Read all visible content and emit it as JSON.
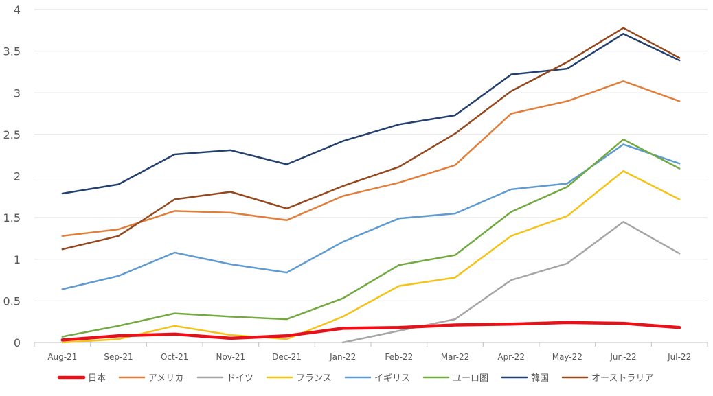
{
  "chart_data": {
    "type": "line",
    "title": "",
    "xlabel": "",
    "ylabel": "",
    "ylim": [
      0,
      4
    ],
    "yticks": [
      "0",
      "0.5",
      "1",
      "1.5",
      "2",
      "2.5",
      "3",
      "3.5",
      "4"
    ],
    "grid": "horizontal",
    "legend": "bottom",
    "categories": [
      "Aug-21",
      "Sep-21",
      "Oct-21",
      "Nov-21",
      "Dec-21",
      "Jan-22",
      "Feb-22",
      "Mar-22",
      "Apr-22",
      "May-22",
      "Jun-22",
      "Jul-22"
    ],
    "series": [
      {
        "name": "日本",
        "color": "#e8111a",
        "emphasis": true,
        "values": [
          0.03,
          0.08,
          0.1,
          0.05,
          0.08,
          0.17,
          0.18,
          0.21,
          0.22,
          0.24,
          0.23,
          0.18
        ]
      },
      {
        "name": "アメリカ",
        "color": "#e07f3c",
        "values": [
          1.28,
          1.36,
          1.58,
          1.56,
          1.47,
          1.76,
          1.92,
          2.13,
          2.75,
          2.9,
          3.14,
          2.9
        ]
      },
      {
        "name": "ドイツ",
        "color": "#a6a6a6",
        "values": [
          null,
          null,
          null,
          null,
          null,
          0.0,
          0.14,
          0.28,
          0.75,
          0.95,
          1.45,
          1.07
        ]
      },
      {
        "name": "フランス",
        "color": "#f5c218",
        "values": [
          0.0,
          0.04,
          0.2,
          0.09,
          0.04,
          0.31,
          0.68,
          0.78,
          1.28,
          1.52,
          2.06,
          1.72
        ]
      },
      {
        "name": "イギリス",
        "color": "#5f9bd0",
        "values": [
          0.64,
          0.8,
          1.08,
          0.94,
          0.84,
          1.21,
          1.49,
          1.55,
          1.84,
          1.91,
          2.38,
          2.15
        ]
      },
      {
        "name": "ユーロ圏",
        "color": "#72a941",
        "values": [
          0.07,
          0.2,
          0.35,
          0.31,
          0.28,
          0.53,
          0.93,
          1.05,
          1.57,
          1.87,
          2.44,
          2.09
        ]
      },
      {
        "name": "韓国",
        "color": "#24406e",
        "values": [
          1.79,
          1.9,
          2.26,
          2.31,
          2.14,
          2.42,
          2.62,
          2.73,
          3.22,
          3.29,
          3.71,
          3.39
        ]
      },
      {
        "name": "オーストラリア",
        "color": "#93481d",
        "values": [
          1.12,
          1.28,
          1.72,
          1.81,
          1.61,
          1.88,
          2.11,
          2.51,
          3.02,
          3.37,
          3.78,
          3.42
        ]
      }
    ]
  }
}
